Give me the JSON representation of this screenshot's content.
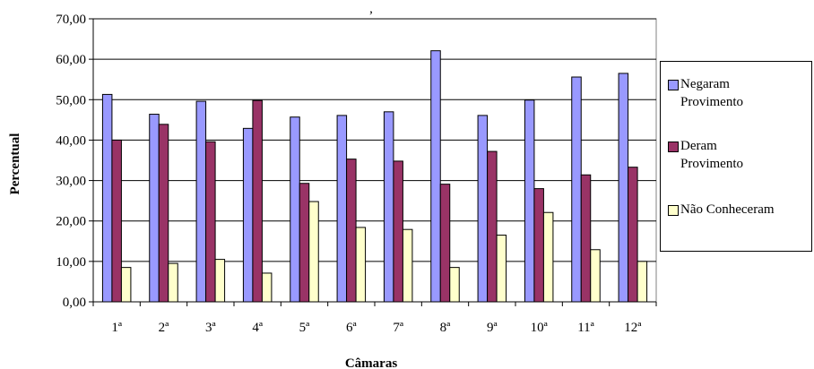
{
  "chart_data": {
    "type": "bar",
    "title": ",",
    "xlabel": "Câmaras",
    "ylabel": "Percentual",
    "ylim": [
      0,
      70
    ],
    "ytick_step": 10,
    "ytick_labels": [
      "0,00",
      "10,00",
      "20,00",
      "30,00",
      "40,00",
      "50,00",
      "60,00",
      "70,00"
    ],
    "categories": [
      "1ª",
      "2ª",
      "3ª",
      "4ª",
      "5ª",
      "6ª",
      "7ª",
      "8ª",
      "9ª",
      "10ª",
      "11ª",
      "12ª"
    ],
    "grid": true,
    "legend_position": "right",
    "series": [
      {
        "name": "Negaram Provimento",
        "color": "#9999ff",
        "values": [
          51.3,
          46.4,
          49.6,
          42.9,
          45.7,
          46.1,
          47.0,
          62.1,
          46.1,
          49.9,
          55.6,
          56.5
        ]
      },
      {
        "name": "Deram Provimento",
        "color": "#993366",
        "values": [
          40.0,
          43.9,
          39.6,
          49.8,
          29.3,
          35.3,
          34.8,
          29.1,
          37.2,
          28.0,
          31.4,
          33.3
        ]
      },
      {
        "name": "Não Conheceram",
        "color": "#ffffcc",
        "values": [
          8.5,
          9.5,
          10.5,
          7.1,
          24.8,
          18.4,
          17.9,
          8.5,
          16.5,
          22.1,
          12.9,
          10.0
        ]
      }
    ]
  },
  "legend": {
    "items": [
      {
        "label": "Negaram\nProvimento",
        "color": "#9999ff"
      },
      {
        "label": "Deram\nProvimento",
        "color": "#993366"
      },
      {
        "label": "Não Conheceram",
        "color": "#ffffcc"
      }
    ]
  }
}
